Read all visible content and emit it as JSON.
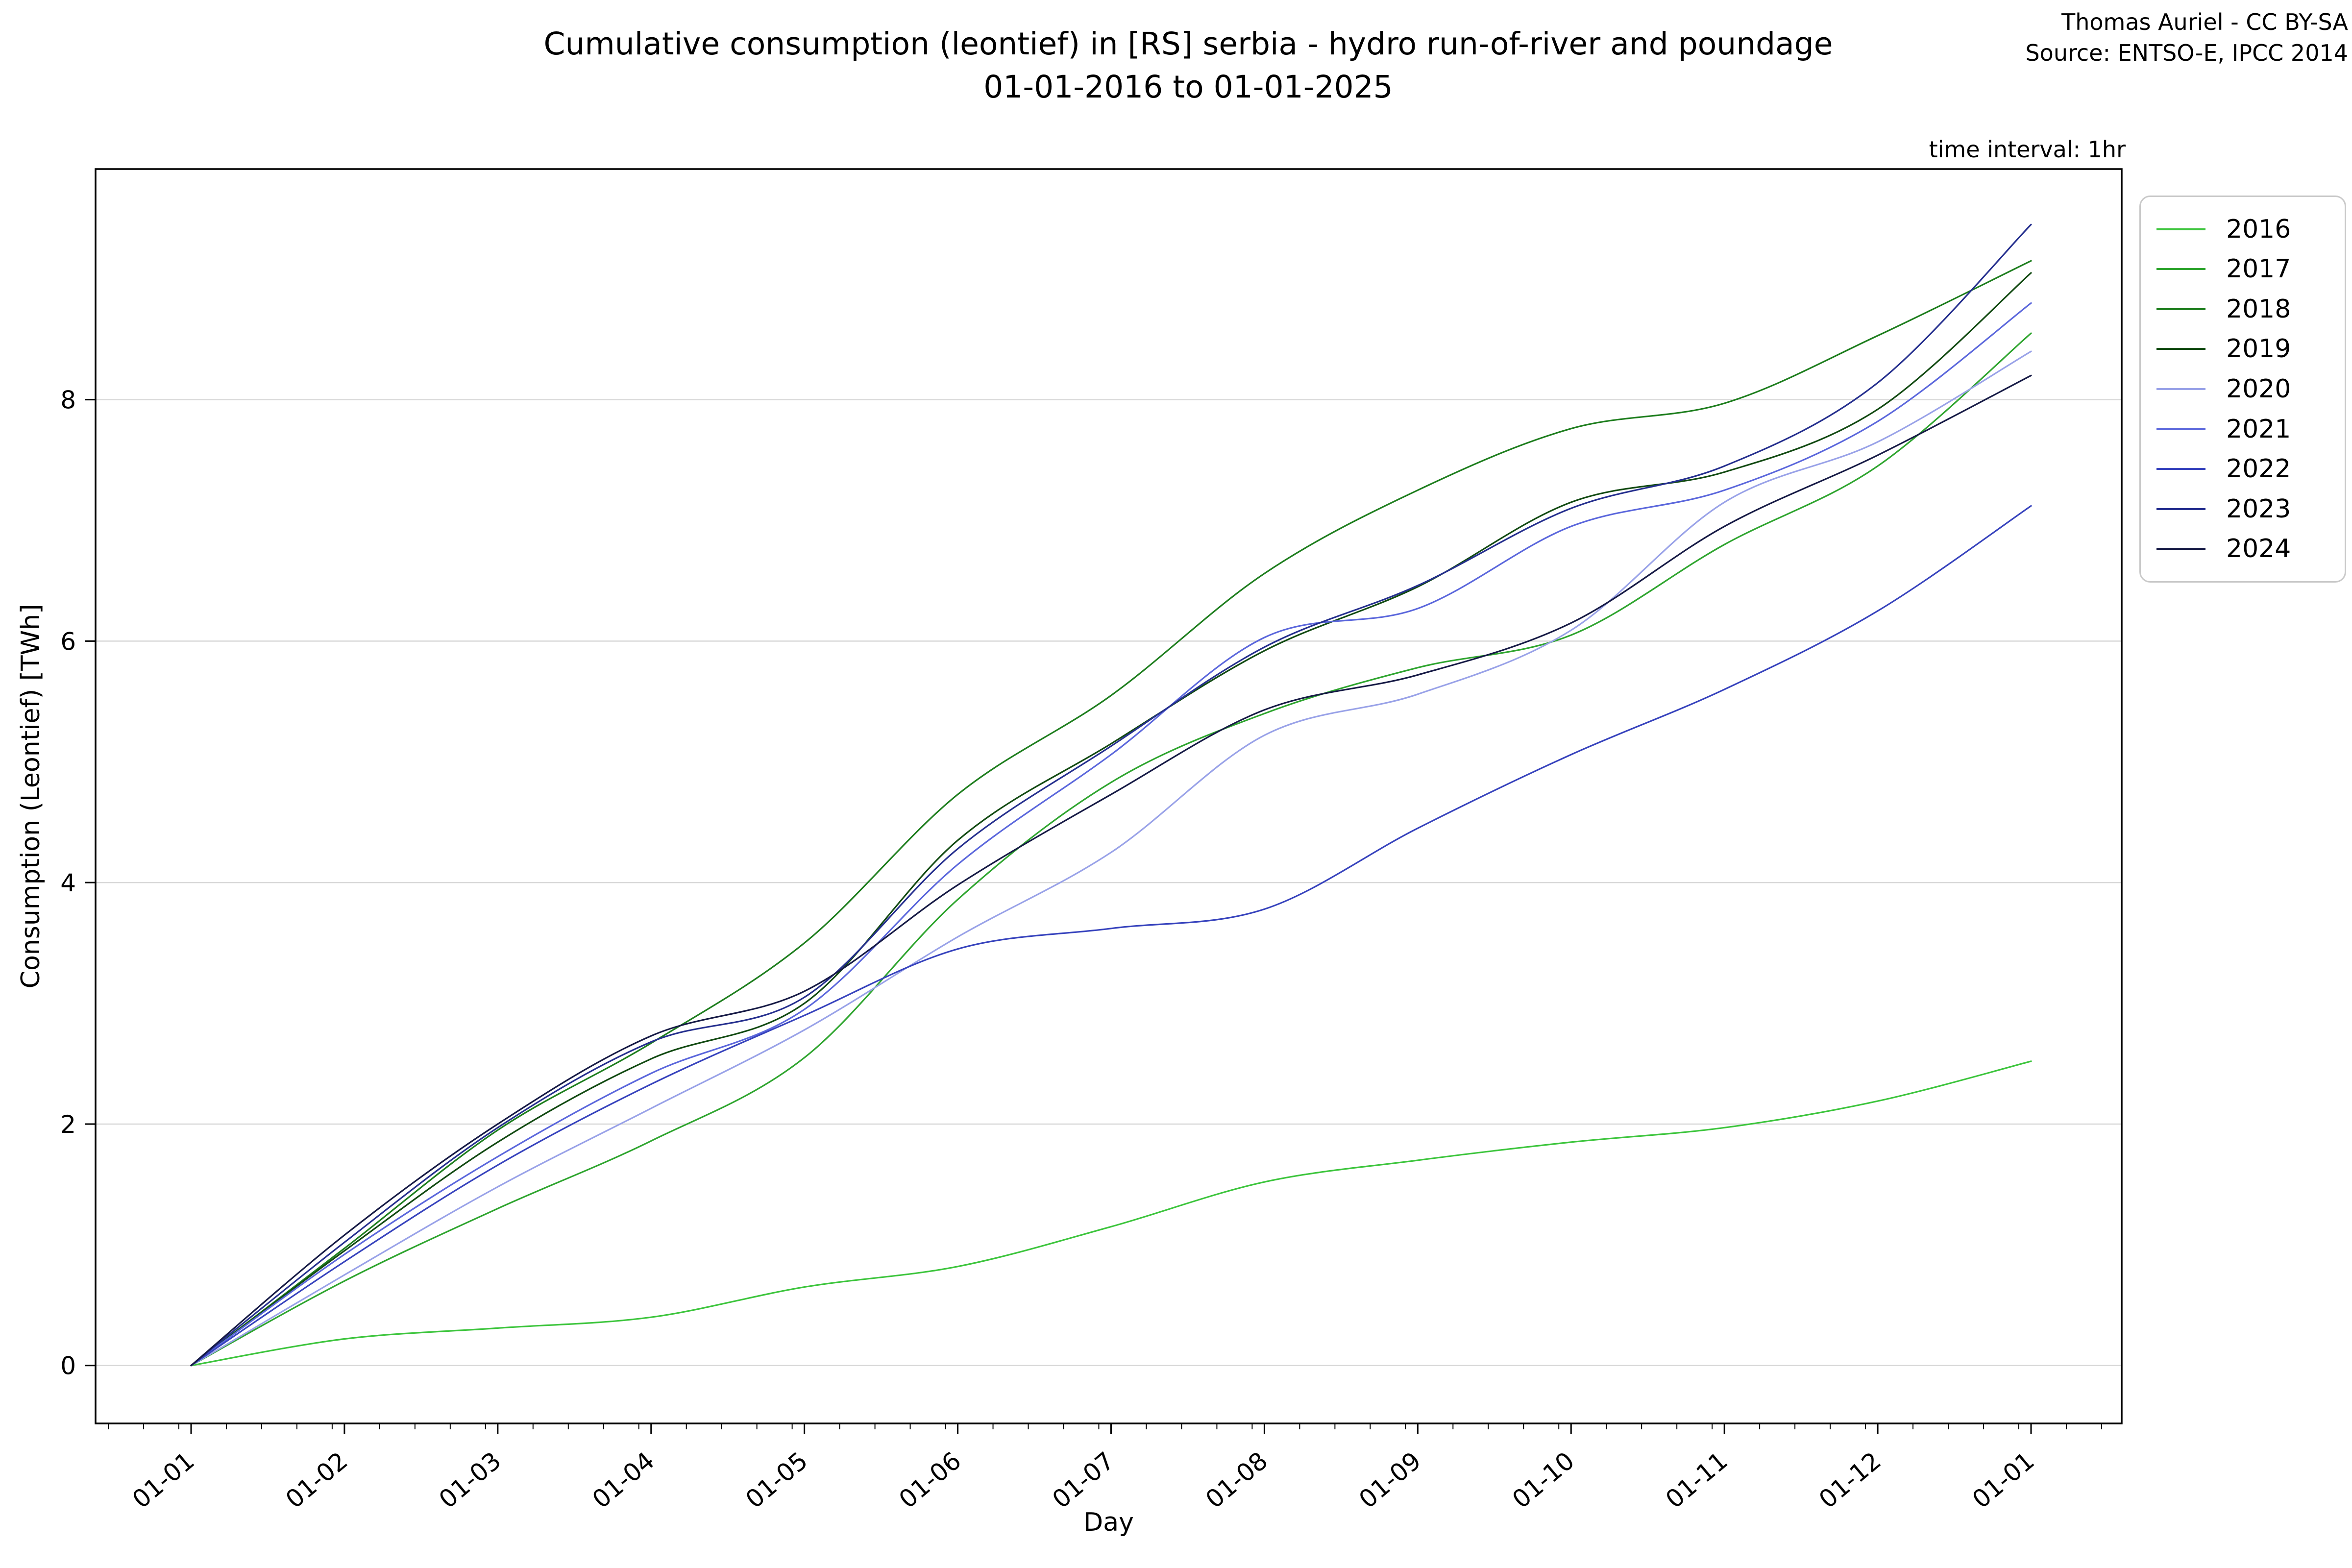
{
  "figure": {
    "title_line1": "Cumulative consumption (leontief) in [RS] serbia - hydro run-of-river and poundage",
    "title_line2": "01-01-2016 to 01-01-2025",
    "attribution_line1": "Thomas Auriel - CC BY-SA",
    "attribution_line2": "Source: ENTSO-E, IPCC 2014",
    "time_interval_label": "time interval: 1hr"
  },
  "chart_data": {
    "type": "line",
    "title": "Cumulative consumption (leontief) in [RS] serbia - hydro run-of-river and poundage 01-01-2016 to 01-01-2025",
    "xlabel": "Day",
    "ylabel": "Consumption (Leontief) [TWh]",
    "categories": [
      "01-01",
      "01-02",
      "01-03",
      "01-04",
      "01-05",
      "01-06",
      "01-07",
      "01-08",
      "01-09",
      "01-10",
      "01-11",
      "01-12",
      "01-01"
    ],
    "y_ticks": [
      0,
      2,
      4,
      6,
      8
    ],
    "ylim": [
      -0.48,
      9.91
    ],
    "grid": "horizontal-only",
    "grid_color": "#d8d8d8",
    "axis_color": "#000000",
    "background_color": "#ffffff",
    "legend_position": "outside-upper-right",
    "series": [
      {
        "name": "2016",
        "color": "#3dc53d",
        "values": [
          0,
          0.22,
          0.31,
          0.4,
          0.65,
          0.82,
          1.15,
          1.52,
          1.7,
          1.85,
          1.97,
          2.19,
          2.52
        ]
      },
      {
        "name": "2017",
        "color": "#2fa52f",
        "values": [
          0,
          0.7,
          1.3,
          1.86,
          2.55,
          3.86,
          4.83,
          5.4,
          5.78,
          6.05,
          6.8,
          7.45,
          8.55
        ]
      },
      {
        "name": "2018",
        "color": "#1e7e1e",
        "values": [
          0,
          0.97,
          1.95,
          2.67,
          3.5,
          4.73,
          5.55,
          6.56,
          7.25,
          7.76,
          7.97,
          8.53,
          9.15
        ]
      },
      {
        "name": "2019",
        "color": "#124a12",
        "values": [
          0,
          0.95,
          1.85,
          2.54,
          3.0,
          4.35,
          5.15,
          5.92,
          6.45,
          7.15,
          7.4,
          7.92,
          9.05
        ]
      },
      {
        "name": "2020",
        "color": "#99a2e8",
        "values": [
          0,
          0.75,
          1.48,
          2.13,
          2.78,
          3.55,
          4.25,
          5.22,
          5.56,
          6.09,
          7.15,
          7.65,
          8.4
        ]
      },
      {
        "name": "2021",
        "color": "#5b67dc",
        "values": [
          0,
          0.92,
          1.73,
          2.42,
          2.95,
          4.15,
          5.06,
          6.03,
          6.27,
          6.95,
          7.25,
          7.82,
          8.8
        ]
      },
      {
        "name": "2022",
        "color": "#3743bd",
        "values": [
          0,
          0.86,
          1.66,
          2.33,
          2.9,
          3.45,
          3.62,
          3.78,
          4.45,
          5.06,
          5.6,
          6.25,
          7.12
        ]
      },
      {
        "name": "2023",
        "color": "#252f8e",
        "values": [
          0,
          1.02,
          1.97,
          2.68,
          3.05,
          4.28,
          5.13,
          5.95,
          6.46,
          7.1,
          7.45,
          8.14,
          9.45
        ]
      },
      {
        "name": "2024",
        "color": "#161a45",
        "values": [
          0,
          1.08,
          2.0,
          2.73,
          3.1,
          3.98,
          4.73,
          5.43,
          5.72,
          6.15,
          6.95,
          7.54,
          8.2
        ]
      }
    ]
  }
}
